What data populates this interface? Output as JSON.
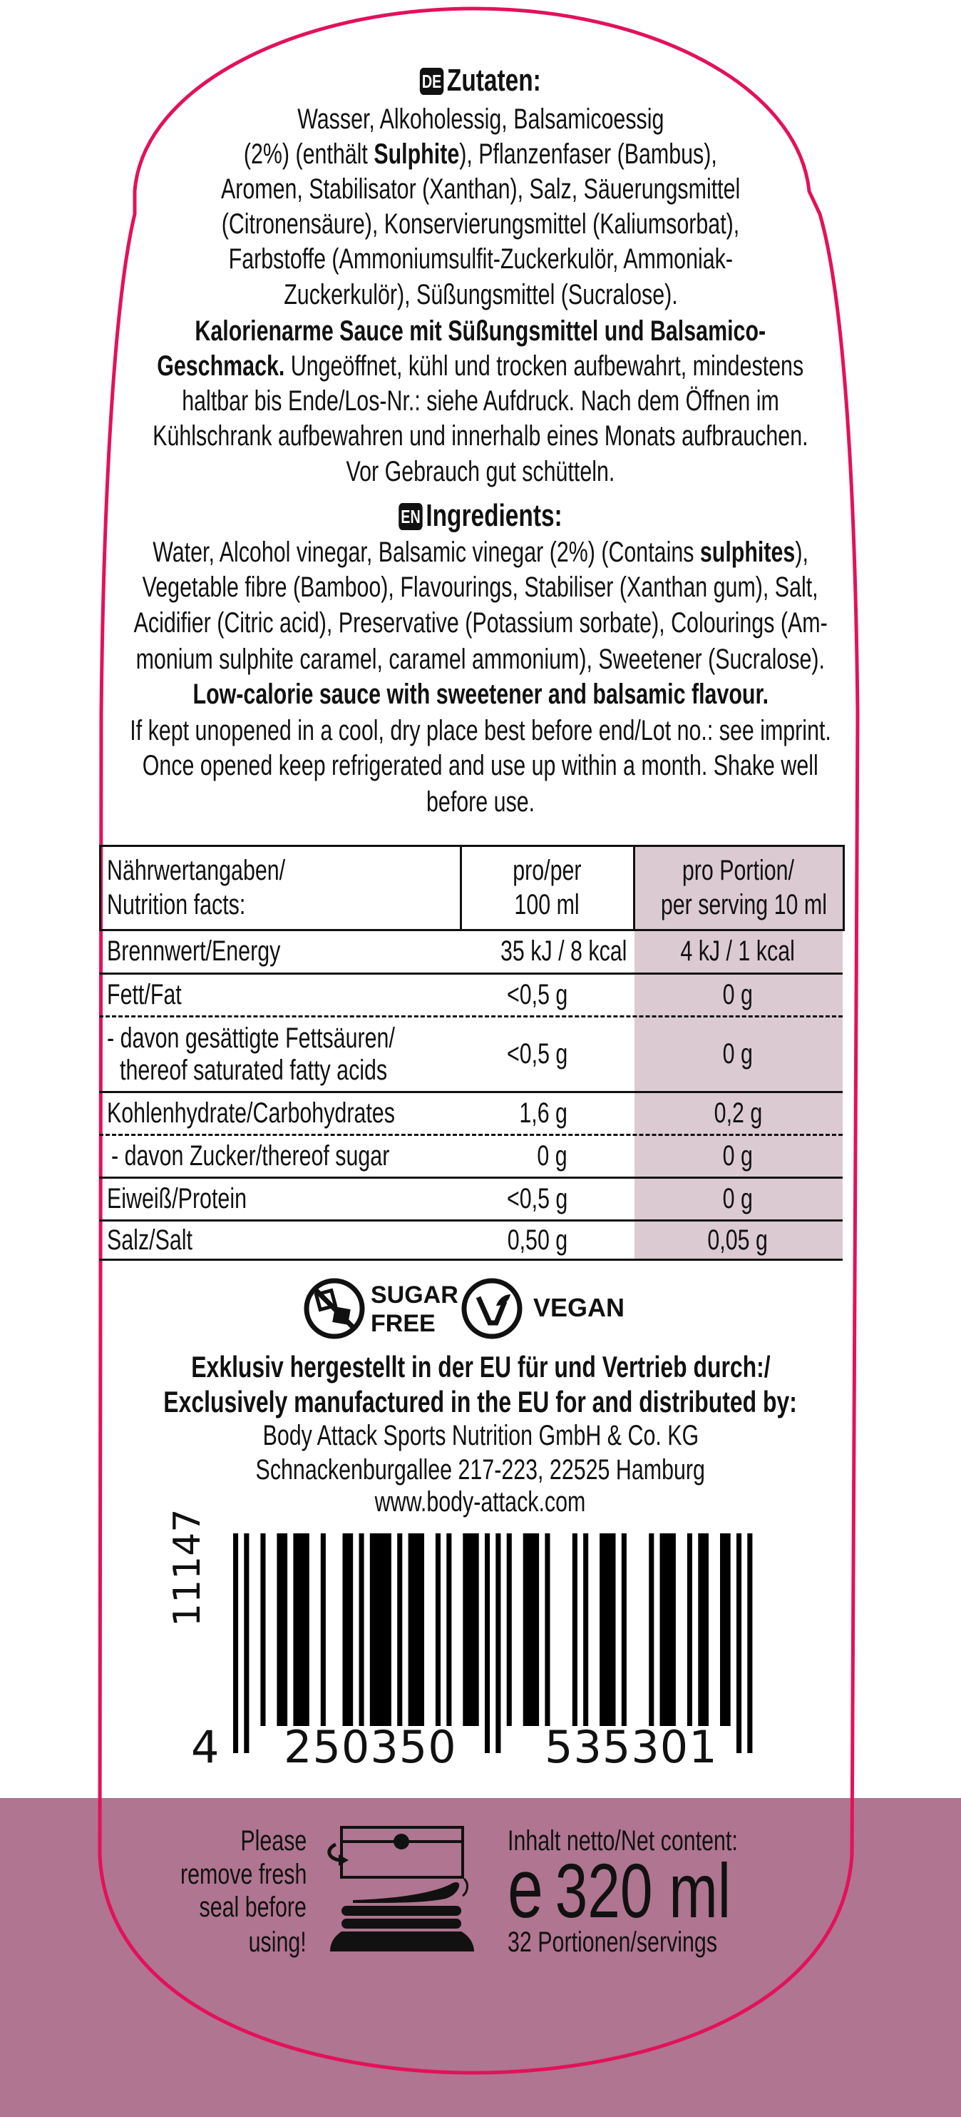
{
  "colors": {
    "outline": "#e3115b",
    "band": "#b07590",
    "table_shade": "#dccad2"
  },
  "de": {
    "badge": "DE",
    "title": "Zutaten:",
    "lines": [
      "Wasser, Alkoholessig, Balsamicoessig",
      "Aromen, Stabilisator (Xanthan), Salz, Säuerungsmittel",
      "(Citronensäure), Konservierungsmittel (Kaliumsorbat),",
      "Farbstoffe (Ammoniumsulfit-Zuckerkulör, Ammoniak-",
      "Zuckerkulör), Süßungsmittel (Sucralose).",
      "Kalorienarme Sauce mit Süßungsmittel und Balsamico-",
      "haltbar bis Ende/Los-Nr.: siehe Aufdruck. Nach dem Öffnen im",
      "Kühlschrank aufbewahren und innerhalb eines Monats aufbrauchen.",
      "Vor Gebrauch gut schütteln."
    ],
    "line2": {
      "pre": "(2%) (enthält ",
      "bold": "Sulphite",
      "post": "), Pflanzenfaser (Bambus),"
    },
    "line8": {
      "bold": "Geschmack.",
      "post": " Ungeöffnet, kühl und trocken aufbewahrt, mindestens"
    }
  },
  "en": {
    "badge": "EN",
    "title": "Ingredients:",
    "line1": {
      "pre": "Water, Alcohol vinegar, Balsamic vinegar (2%) (Contains ",
      "bold": "sulphites",
      "post": "),"
    },
    "lines": [
      "Vegetable fibre (Bamboo), Flavourings, Stabiliser (Xanthan gum), Salt,",
      "Acidifier (Citric acid), Preservative (Potassium sorbate), Colourings (Am-",
      "monium sulphite caramel, caramel ammonium), Sweetener (Sucralose).",
      "Low-calorie sauce with sweetener and balsamic flavour.",
      "If kept unopened in a cool, dry place best before end/Lot no.: see imprint.",
      "Once opened keep refrigerated and use up within a month. Shake well",
      "before use."
    ]
  },
  "nutrition": {
    "headers": {
      "label": [
        "Nährwertangaben/",
        "Nutrition facts:"
      ],
      "per100": [
        "pro/per",
        "100 ml"
      ],
      "perServing": [
        "pro Portion/",
        "per serving 10 ml"
      ]
    },
    "rows": [
      {
        "label": "Brennwert/Energy",
        "per100": "35 kJ / 8 kcal",
        "perServing": "4 kJ / 1 kcal"
      },
      {
        "label": "Fett/Fat",
        "per100": "<0,5 g",
        "perServing": "0 g"
      },
      {
        "label": [
          "- davon gesättigte Fettsäuren/",
          "thereof saturated fatty acids"
        ],
        "per100": "<0,5 g",
        "perServing": "0 g"
      },
      {
        "label": "Kohlenhydrate/Carbohydrates",
        "per100": "1,6 g",
        "perServing": "0,2 g"
      },
      {
        "label": "- davon Zucker/thereof sugar",
        "per100": "0 g",
        "perServing": "0 g"
      },
      {
        "label": "Eiweiß/Protein",
        "per100": "<0,5 g",
        "perServing": "0 g"
      },
      {
        "label": "Salz/Salt",
        "per100": "0,50 g",
        "perServing": "0,05 g"
      }
    ]
  },
  "badges": {
    "sugar_free": [
      "SUGAR",
      "FREE"
    ],
    "vegan": "VEGAN"
  },
  "manufacturer": {
    "line_de": "Exklusiv hergestellt in der EU für und Vertrieb durch:/",
    "line_en": "Exclusively manufactured in the EU for and distributed by:",
    "company": "Body Attack Sports Nutrition GmbH & Co. KG",
    "address": "Schnackenburgallee 217-223, 22525 Hamburg",
    "website": "www.body-attack.com"
  },
  "barcode": {
    "article_no": "11147",
    "ean": "4250350535301",
    "digit_first": "4",
    "digits_left": "250350",
    "digits_right": "535301"
  },
  "footer": {
    "seal_text": [
      "Please",
      "remove fresh",
      "seal before",
      "using!"
    ],
    "net_label": "Inhalt netto/Net content:",
    "estimated_sign": "e",
    "net_value": "320 ml",
    "servings": "32 Portionen/servings"
  }
}
